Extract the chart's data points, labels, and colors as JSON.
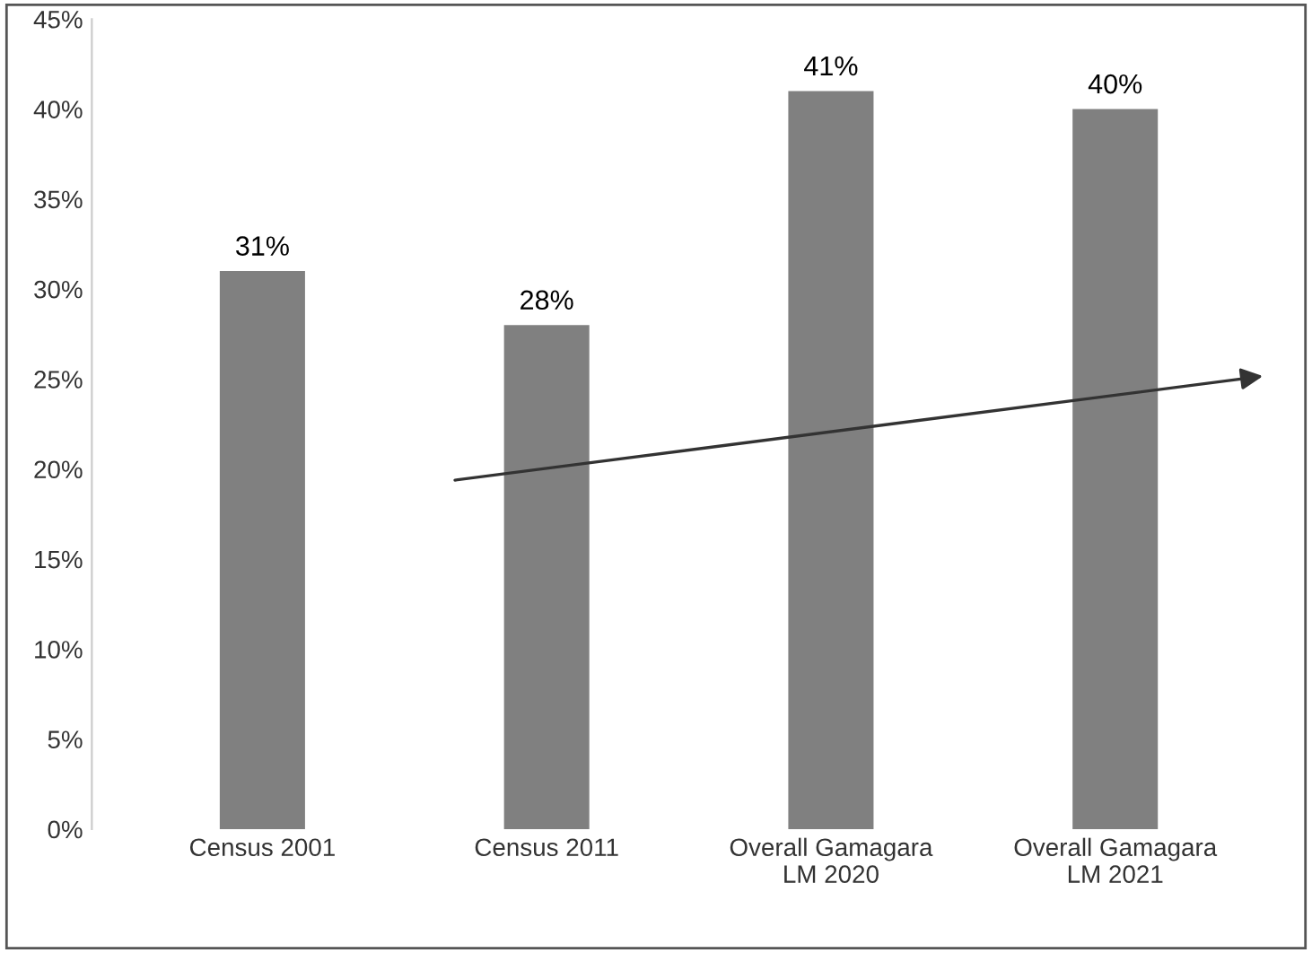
{
  "chart_data": {
    "type": "bar",
    "categories": [
      "Census 2001",
      "Census 2011",
      "Overall Gamagara\nLM 2020",
      "Overall Gamagara\nLM 2021"
    ],
    "values": [
      31,
      28,
      41,
      40
    ],
    "value_labels": [
      "31%",
      "28%",
      "41%",
      "40%"
    ],
    "color": "#808080",
    "ylim": [
      0,
      45
    ],
    "yticks": [
      {
        "value": 0,
        "label": "0%"
      },
      {
        "value": 5,
        "label": "5%"
      },
      {
        "value": 10,
        "label": "10%"
      },
      {
        "value": 15,
        "label": "15%"
      },
      {
        "value": 20,
        "label": "20%"
      },
      {
        "value": 25,
        "label": "25%"
      },
      {
        "value": 30,
        "label": "30%"
      },
      {
        "value": 35,
        "label": "35%"
      },
      {
        "value": 40,
        "label": "40%"
      },
      {
        "value": 45,
        "label": "45%"
      }
    ],
    "grid": false,
    "legend": false
  }
}
